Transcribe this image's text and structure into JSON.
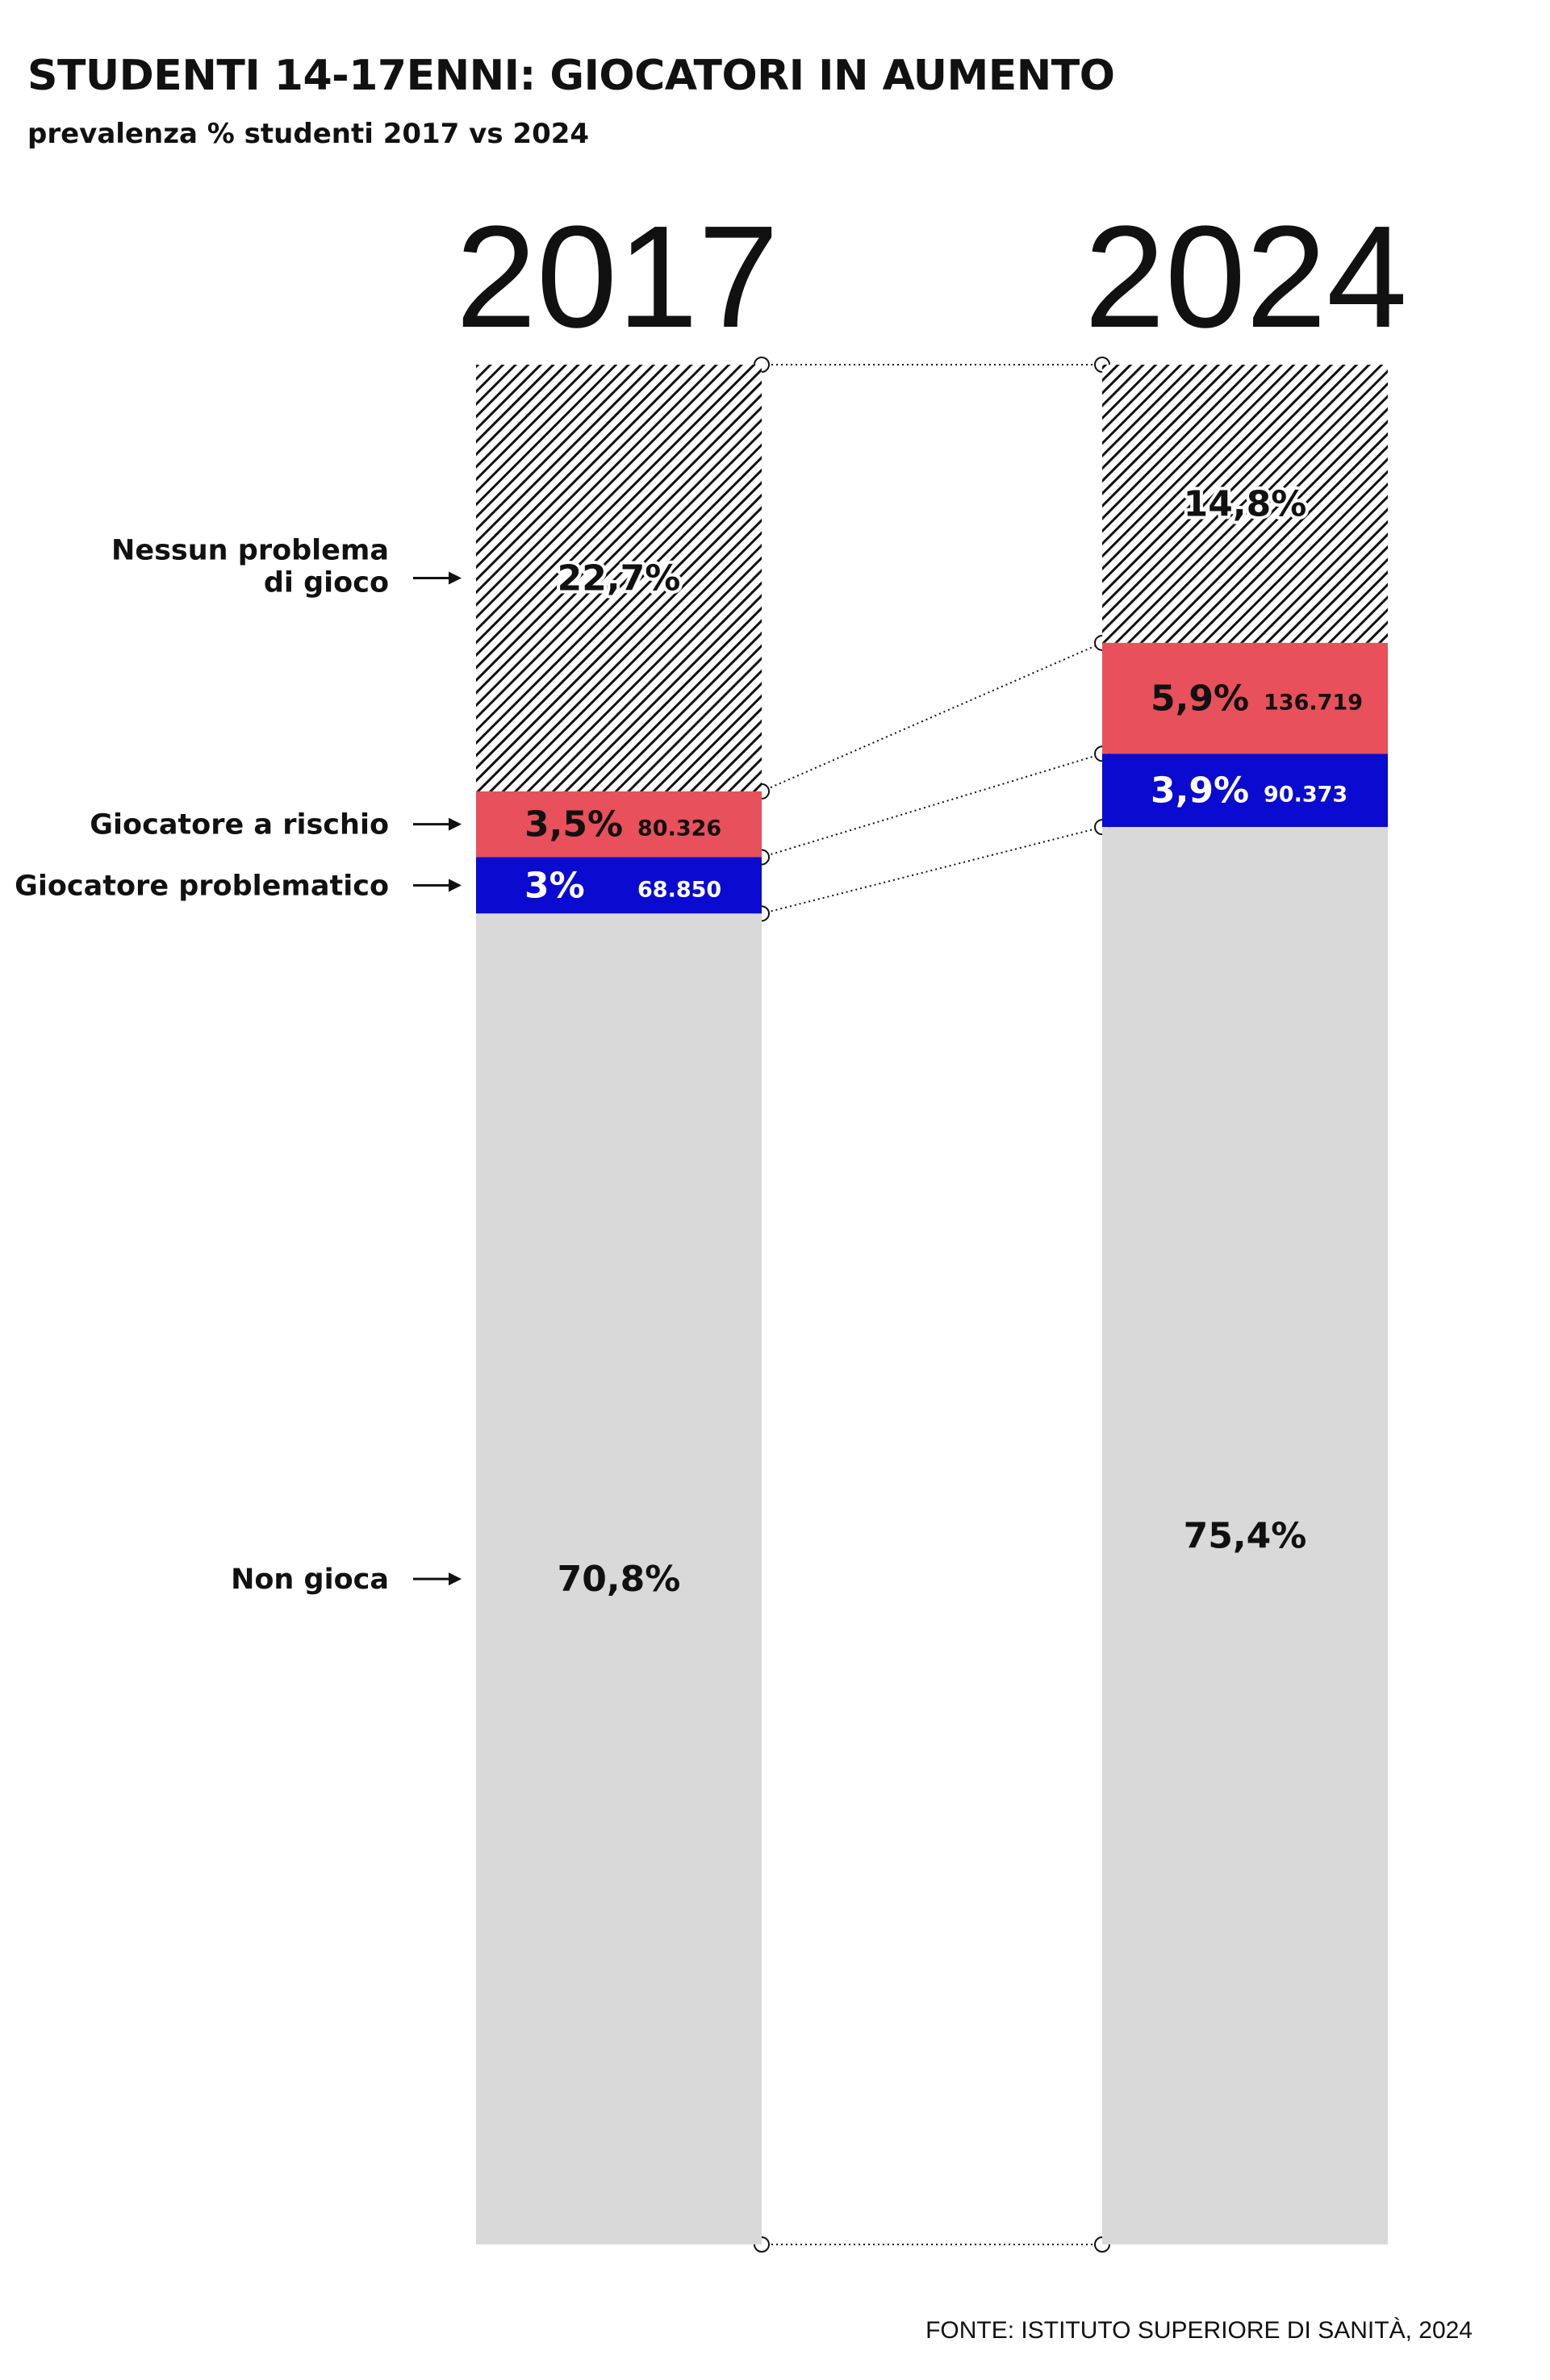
{
  "title": "STUDENTI 14-17ENNI: GIOCATORI IN AUMENTO",
  "subtitle": "prevalenza % studenti 2017 vs 2024",
  "source": "FONTE: ISTITUTO SUPERIORE DI SANITÀ, 2024",
  "colors": {
    "nessun_problema": "#ffffff",
    "hatch": "#111111",
    "rischio": "#e8505b",
    "problematico": "#0a0ad0",
    "non_gioca": "#d9d9d9"
  },
  "chart_data": {
    "type": "bar",
    "stacked": true,
    "normalized_to": 100,
    "categories": [
      "2017",
      "2024"
    ],
    "series": [
      {
        "name": "Nessun problema di gioco",
        "label_lines": [
          "Nessun problema",
          "di gioco"
        ],
        "pattern": "hatch",
        "values": [
          22.7,
          14.8
        ],
        "labels": [
          "22,7%",
          "14,8%"
        ],
        "counts": [
          "",
          ""
        ]
      },
      {
        "name": "Giocatore a rischio",
        "label_lines": [
          "Giocatore a rischio"
        ],
        "color": "#e8505b",
        "values": [
          3.5,
          5.9
        ],
        "labels": [
          "3,5%",
          "5,9%"
        ],
        "counts": [
          "80.326",
          "136.719"
        ]
      },
      {
        "name": "Giocatore problematico",
        "label_lines": [
          "Giocatore problematico"
        ],
        "color": "#0a0ad0",
        "values": [
          3,
          3.9
        ],
        "labels": [
          "3%",
          "3,9%"
        ],
        "counts": [
          "68.850",
          "90.373"
        ]
      },
      {
        "name": "Non gioca",
        "label_lines": [
          "Non gioca"
        ],
        "color": "#d9d9d9",
        "values": [
          70.8,
          75.4
        ],
        "labels": [
          "70,8%",
          "75,4%"
        ],
        "counts": [
          "",
          ""
        ]
      }
    ],
    "legend": "left, arrows pointing to 2017 bar",
    "connectors": "dotted lines between segment boundaries"
  }
}
